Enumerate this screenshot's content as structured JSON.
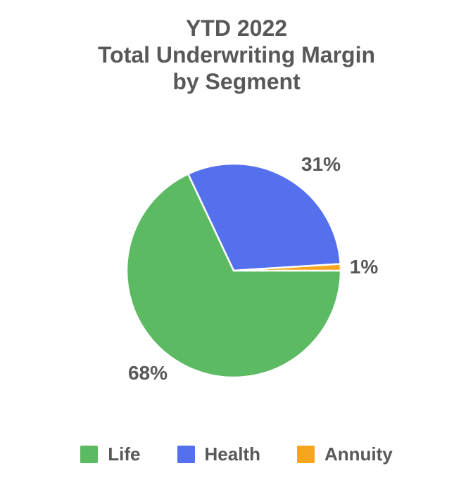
{
  "page": {
    "background_color": "#ffffff"
  },
  "chart_data": {
    "type": "pie",
    "title": "YTD 2022 Total Underwriting Margin by Segment",
    "title_lines": [
      "YTD 2022",
      "Total Underwriting Margin",
      "by Segment"
    ],
    "slices": [
      {
        "label": "Life",
        "value": 68,
        "pct_label": "68%",
        "color": "#5CBA62"
      },
      {
        "label": "Health",
        "value": 31,
        "pct_label": "31%",
        "color": "#5470EC"
      },
      {
        "label": "Annuity",
        "value": 1,
        "pct_label": "1%",
        "color": "#F7A51E"
      }
    ],
    "unit": "%",
    "start_angle_deg": 0,
    "direction": "clockwise",
    "slice_separator_color": "#ffffff",
    "text_color": "#58585A",
    "legend_position": "bottom",
    "grid": "off"
  }
}
